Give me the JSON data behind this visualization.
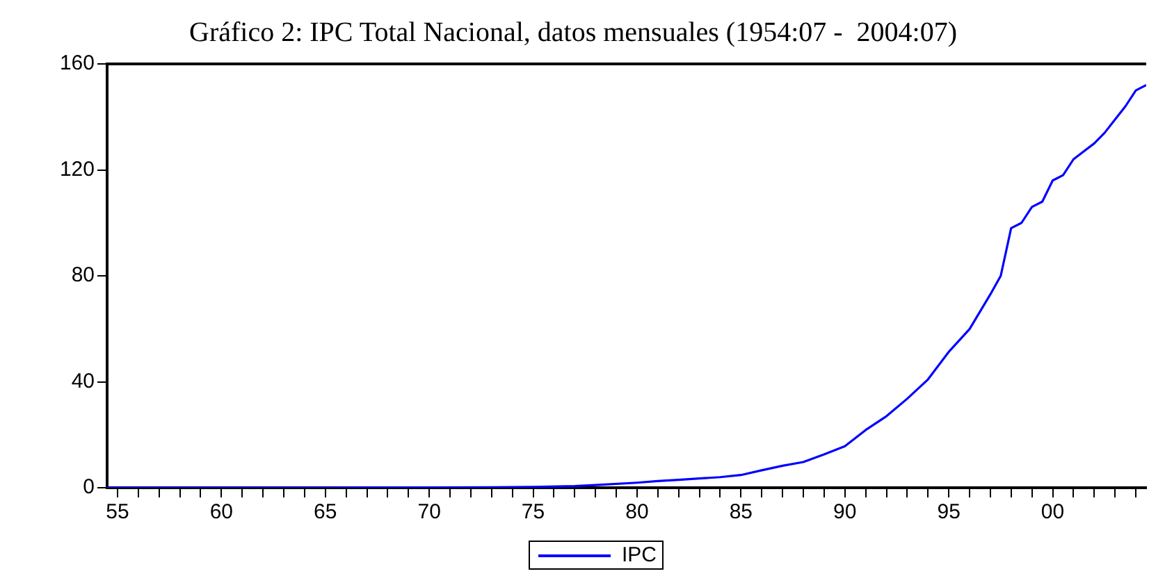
{
  "chart_data": {
    "type": "line",
    "title": "Gráfico 2: IPC Total Nacional, datos mensuales (1954:07 -  2004:07)",
    "x": [
      1954.5,
      1960,
      1965,
      1970,
      1973,
      1975,
      1977,
      1978,
      1980,
      1981,
      1982,
      1983,
      1984,
      1985,
      1986,
      1987,
      1988,
      1989,
      1990,
      1991,
      1992,
      1993,
      1994,
      1995,
      1996,
      1997,
      1997.5,
      1998,
      1998.5,
      1999,
      1999.5,
      2000,
      2000.5,
      2001,
      2001.5,
      2002,
      2002.5,
      2003,
      2003.5,
      2004,
      2004.5
    ],
    "series": [
      {
        "name": "IPC",
        "color": "#0000ff",
        "values": [
          0,
          0,
          0,
          0.1,
          0.2,
          0.3,
          0.6,
          1,
          1.9,
          2.5,
          3,
          3.5,
          4,
          4.8,
          6.6,
          8.3,
          9.7,
          12.6,
          15.7,
          21.8,
          27,
          33.6,
          40.9,
          51.3,
          59.9,
          73,
          80,
          98,
          100,
          106,
          108,
          116,
          118,
          124,
          127,
          130,
          134,
          139,
          144,
          150,
          152
        ]
      }
    ],
    "xlim": [
      1954.5,
      2004.5
    ],
    "xticks": [
      {
        "value": 1955,
        "label": "55"
      },
      {
        "value": 1956,
        "label": null
      },
      {
        "value": 1957,
        "label": null
      },
      {
        "value": 1958,
        "label": null
      },
      {
        "value": 1959,
        "label": null
      },
      {
        "value": 1960,
        "label": "60"
      },
      {
        "value": 1961,
        "label": null
      },
      {
        "value": 1962,
        "label": null
      },
      {
        "value": 1963,
        "label": null
      },
      {
        "value": 1964,
        "label": null
      },
      {
        "value": 1965,
        "label": "65"
      },
      {
        "value": 1966,
        "label": null
      },
      {
        "value": 1967,
        "label": null
      },
      {
        "value": 1968,
        "label": null
      },
      {
        "value": 1969,
        "label": null
      },
      {
        "value": 1970,
        "label": "70"
      },
      {
        "value": 1971,
        "label": null
      },
      {
        "value": 1972,
        "label": null
      },
      {
        "value": 1973,
        "label": null
      },
      {
        "value": 1974,
        "label": null
      },
      {
        "value": 1975,
        "label": "75"
      },
      {
        "value": 1976,
        "label": null
      },
      {
        "value": 1977,
        "label": null
      },
      {
        "value": 1978,
        "label": null
      },
      {
        "value": 1979,
        "label": null
      },
      {
        "value": 1980,
        "label": "80"
      },
      {
        "value": 1981,
        "label": null
      },
      {
        "value": 1982,
        "label": null
      },
      {
        "value": 1983,
        "label": null
      },
      {
        "value": 1984,
        "label": null
      },
      {
        "value": 1985,
        "label": "85"
      },
      {
        "value": 1986,
        "label": null
      },
      {
        "value": 1987,
        "label": null
      },
      {
        "value": 1988,
        "label": null
      },
      {
        "value": 1989,
        "label": null
      },
      {
        "value": 1990,
        "label": "90"
      },
      {
        "value": 1991,
        "label": null
      },
      {
        "value": 1992,
        "label": null
      },
      {
        "value": 1993,
        "label": null
      },
      {
        "value": 1994,
        "label": null
      },
      {
        "value": 1995,
        "label": "95"
      },
      {
        "value": 1996,
        "label": null
      },
      {
        "value": 1997,
        "label": null
      },
      {
        "value": 1998,
        "label": null
      },
      {
        "value": 1999,
        "label": null
      },
      {
        "value": 2000,
        "label": "00"
      },
      {
        "value": 2001,
        "label": null
      },
      {
        "value": 2002,
        "label": null
      },
      {
        "value": 2003,
        "label": null
      },
      {
        "value": 2004,
        "label": null
      }
    ],
    "ylim": [
      0,
      160
    ],
    "yticks": [
      0,
      40,
      80,
      120,
      160
    ],
    "grid": false,
    "legend": "bottom",
    "marker": "none",
    "line_style": "solid"
  }
}
